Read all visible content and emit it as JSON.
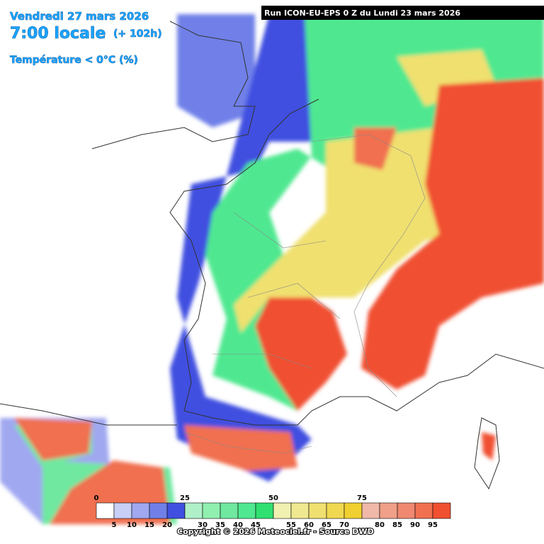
{
  "header": {
    "date": "Vendredi 27 mars 2026",
    "time": "7:00 locale",
    "lead": "(+ 102h)",
    "field": "Température < 0°C (%)",
    "run": "Run ICON-EU-EPS 0 Z du Lundi 23 mars 2026"
  },
  "legend": {
    "colors": [
      "#ffffff",
      "#c8d0f8",
      "#a0a8f0",
      "#7080e8",
      "#4050e0",
      "#b0f0c8",
      "#90f0b0",
      "#70e8a0",
      "#50e890",
      "#30e070",
      "#f0f0b0",
      "#f0e890",
      "#f0e070",
      "#f0d850",
      "#f0d030",
      "#f0b8a8",
      "#f0a088",
      "#f08870",
      "#f07050",
      "#f05030"
    ],
    "major_ticks": [
      0,
      25,
      50,
      75
    ],
    "minor_ticks": [
      5,
      10,
      15,
      20,
      30,
      35,
      40,
      45,
      55,
      60,
      65,
      70,
      80,
      85,
      90,
      95
    ]
  },
  "footer": {
    "copyright": "Copyright © 2026 Meteociel.fr - Source DWD"
  }
}
